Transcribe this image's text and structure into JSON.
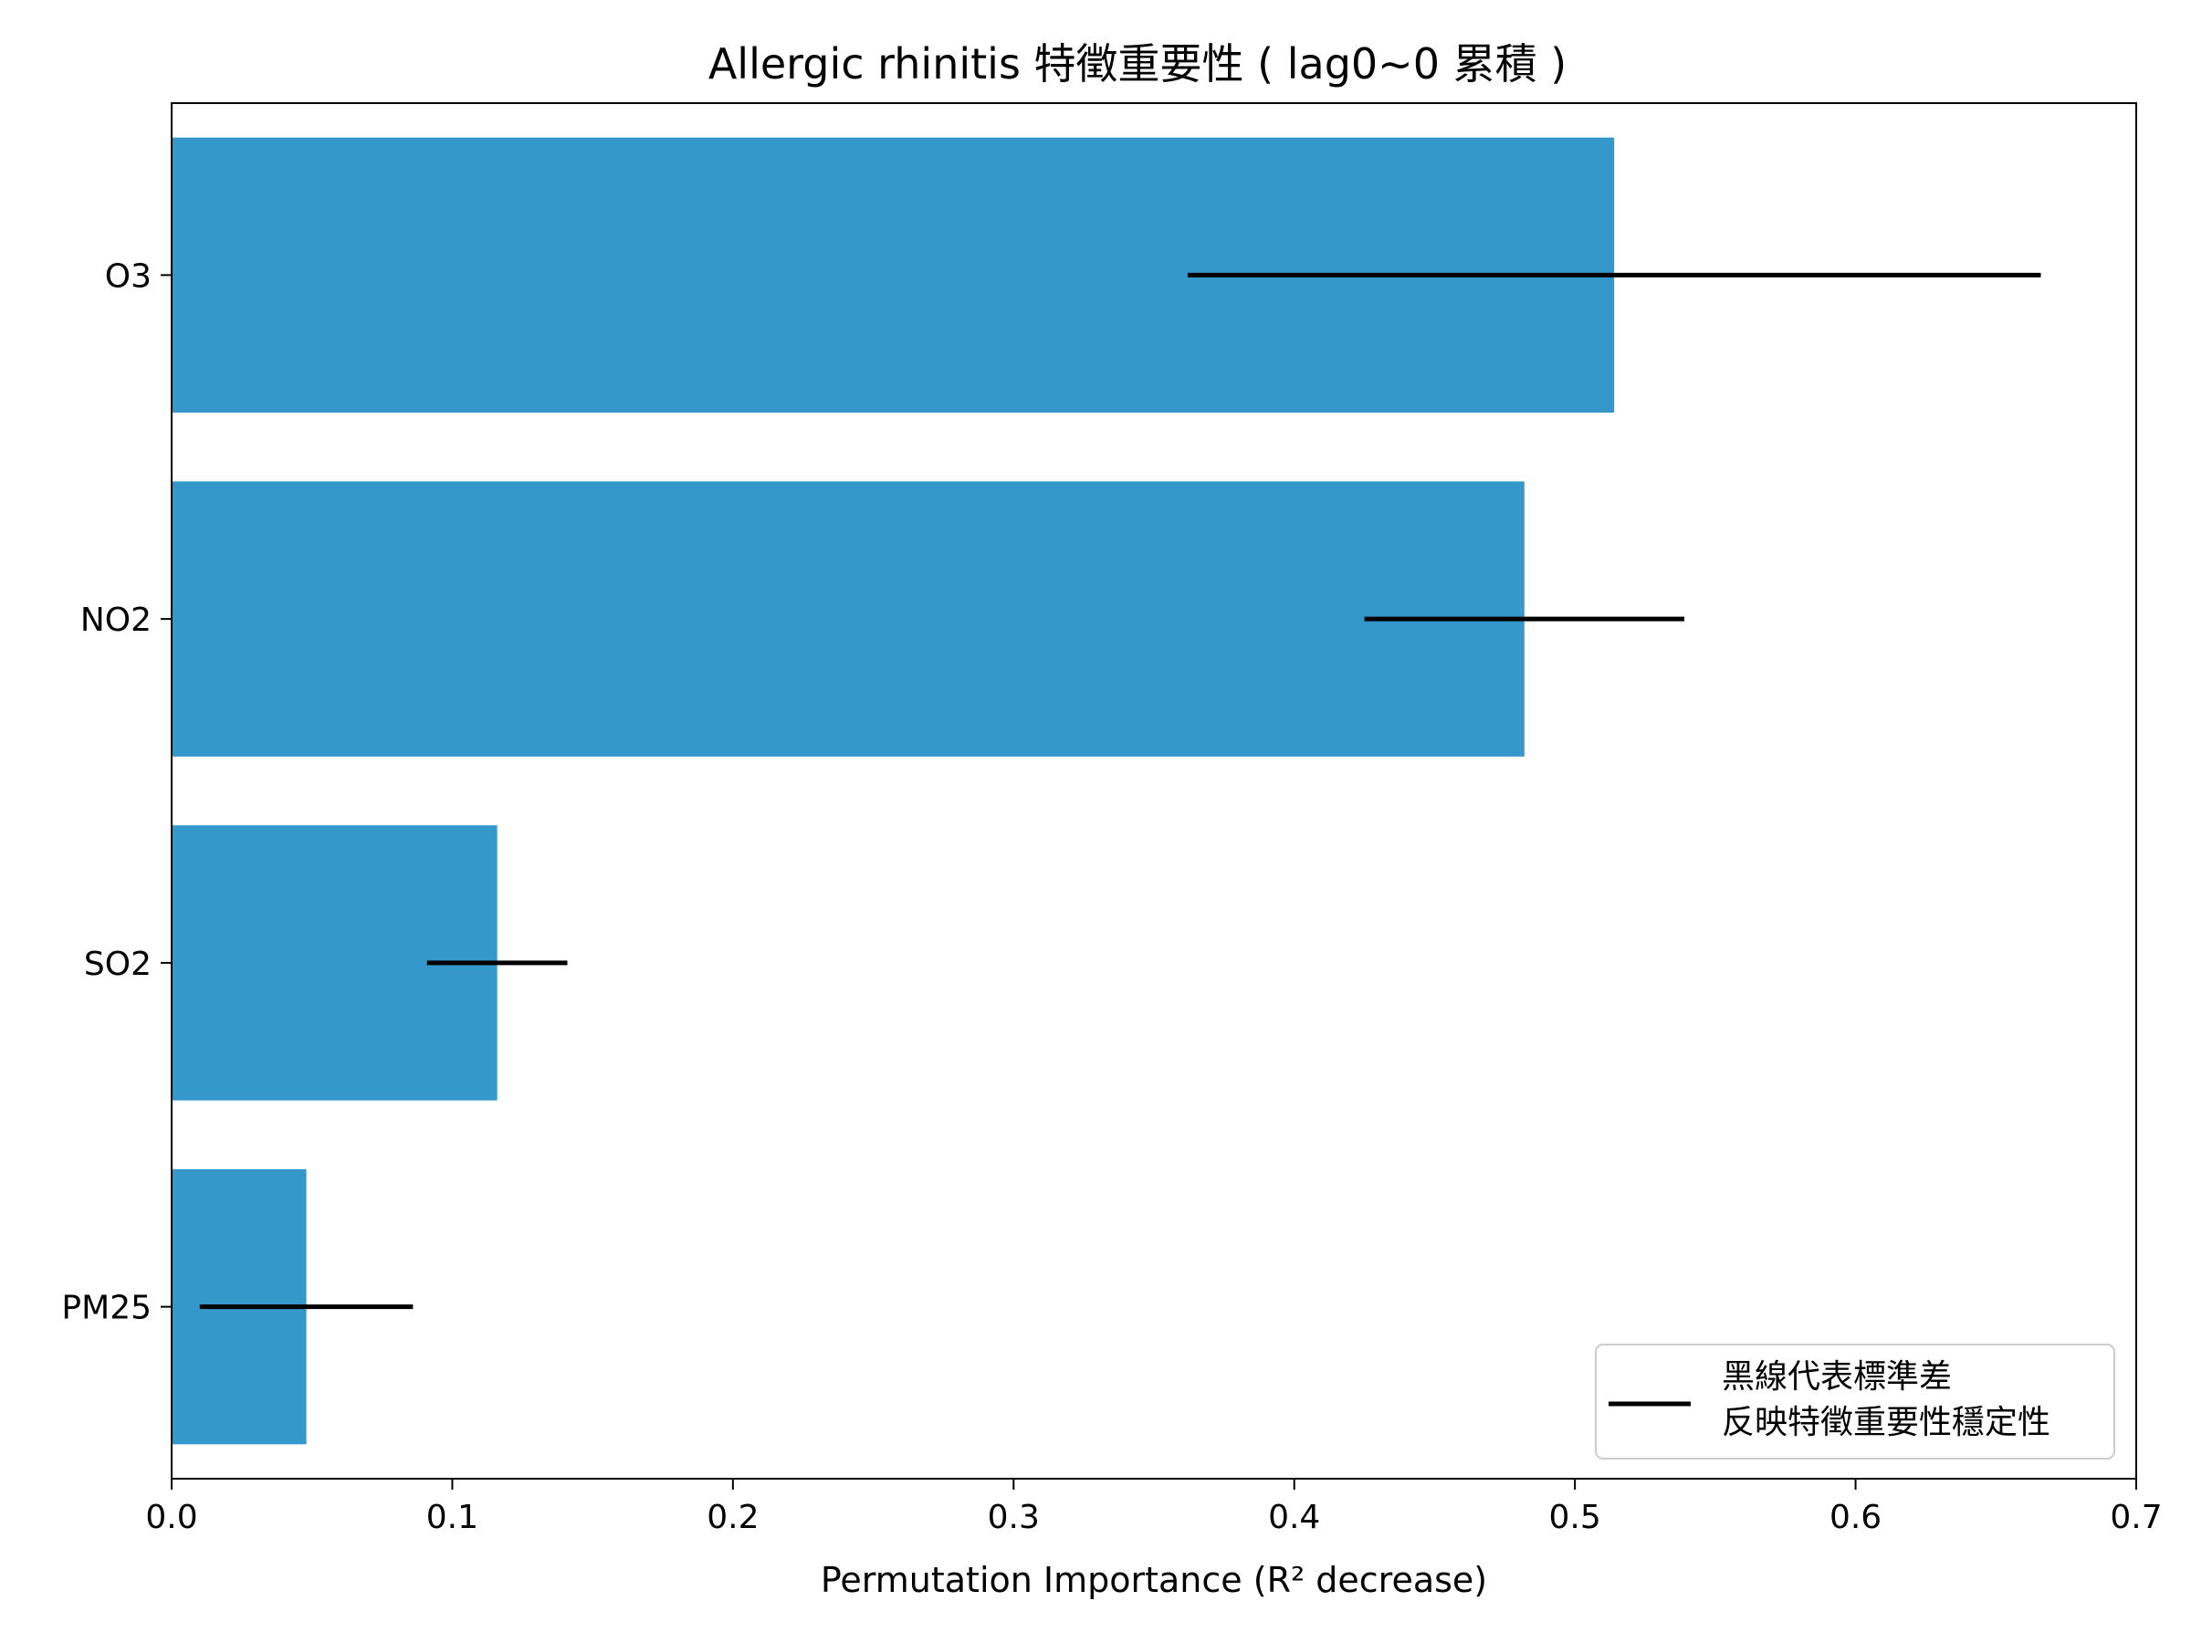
{
  "chart_data": {
    "type": "bar",
    "orientation": "horizontal",
    "title": "Allergic rhinitis 特徵重要性 ( lag0~0 累積 )",
    "xlabel": "Permutation Importance (R² decrease)",
    "ylabel": "",
    "categories": [
      "O3",
      "NO2",
      "SO2",
      "PM25"
    ],
    "values": [
      0.514,
      0.482,
      0.116,
      0.048
    ],
    "error": [
      0.152,
      0.057,
      0.025,
      0.038
    ],
    "xlim": [
      0.0,
      0.7
    ],
    "xticks": [
      "0.0",
      "0.1",
      "0.2",
      "0.3",
      "0.4",
      "0.5",
      "0.6",
      "0.7"
    ],
    "bar_color": "#3498cb",
    "error_color": "#000000",
    "grid": false,
    "legend": {
      "placement": "bottom-right",
      "line1": "黑線代表標準差",
      "line2": "反映特徵重要性穩定性"
    }
  }
}
